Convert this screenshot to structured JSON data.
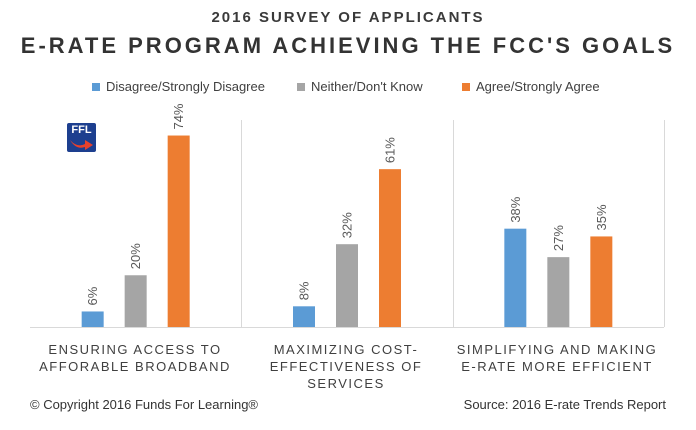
{
  "chart_data": {
    "type": "bar",
    "subtitle": "2016 SURVEY OF APPLICANTS",
    "title": "E-RATE PROGRAM ACHIEVING THE FCC'S GOALS",
    "categories": [
      [
        "ENSURING ACCESS TO",
        "AFFORABLE BROADBAND"
      ],
      [
        "MAXIMIZING COST-",
        "EFFECTIVENESS OF SERVICES"
      ],
      [
        "SIMPLIFYING AND MAKING",
        "E-RATE MORE EFFICIENT"
      ]
    ],
    "series": [
      {
        "name": "Disagree/Strongly Disagree",
        "color": "#5b9bd5",
        "values": [
          6,
          8,
          38
        ],
        "labels": [
          "6%",
          "8%",
          "38%"
        ]
      },
      {
        "name": "Neither/Don't Know",
        "color": "#a5a5a5",
        "values": [
          20,
          32,
          27
        ],
        "labels": [
          "20%",
          "32%",
          "27%"
        ]
      },
      {
        "name": "Agree/Strongly Agree",
        "color": "#ed7d31",
        "values": [
          74,
          61,
          35
        ],
        "labels": [
          "74%",
          "61%",
          "35%"
        ]
      }
    ],
    "ylim": [
      0,
      80
    ],
    "grid": false,
    "legend": "top"
  },
  "logo": {
    "text": "FFL",
    "color": "#1d3f8f",
    "icon": "ffl-logo-icon"
  },
  "footer": {
    "copyright": "© Copyright 2016 Funds For Learning®",
    "source": "Source: 2016 E-rate Trends Report"
  }
}
